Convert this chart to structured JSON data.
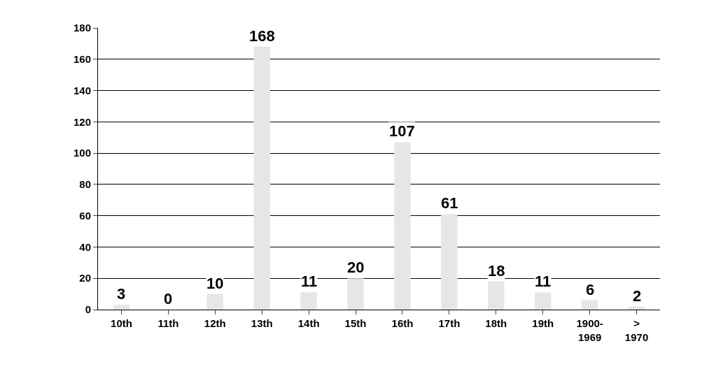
{
  "chart_data": {
    "type": "bar",
    "categories": [
      "10th",
      "11th",
      "12th",
      "13th",
      "14th",
      "15th",
      "16th",
      "17th",
      "18th",
      "19th",
      "1900-1969",
      "> 1970"
    ],
    "values": [
      3,
      0,
      10,
      168,
      11,
      20,
      107,
      61,
      18,
      11,
      6,
      2
    ],
    "color": "#e6e6e6",
    "ylim": [
      0,
      180
    ],
    "yticks": [
      0,
      20,
      40,
      60,
      80,
      100,
      120,
      140,
      160,
      180
    ],
    "grid": "y",
    "data_labels": true
  }
}
